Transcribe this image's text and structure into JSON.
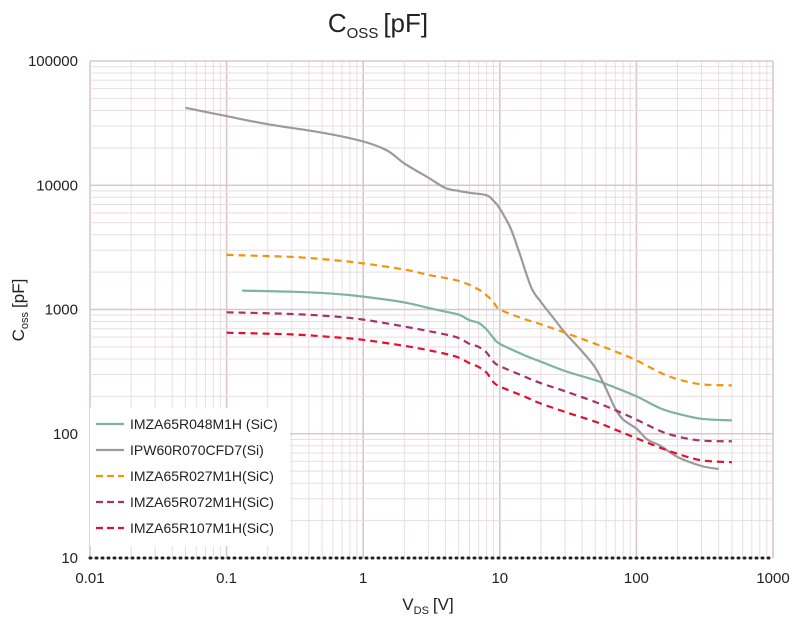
{
  "chart_data": {
    "type": "line",
    "title": "C",
    "title_sub": "OSS",
    "title_unit": "[pF]",
    "xlabel": "V",
    "xlabel_sub": "DS",
    "xlabel_unit": "[V]",
    "ylabel": "C",
    "ylabel_sub": "oss",
    "ylabel_unit": "[pF]",
    "x_scale": "log",
    "y_scale": "log",
    "xlim": [
      0.01,
      1000
    ],
    "ylim": [
      10,
      100000
    ],
    "x_ticks": [
      "0.01",
      "0.1",
      "1",
      "10",
      "100",
      "1000"
    ],
    "y_ticks": [
      "10",
      "100",
      "1000",
      "10000",
      "100000"
    ],
    "grid": true,
    "legend_position": "bottom-left",
    "series": [
      {
        "name": "IMZA65R048M1H (SiC)",
        "color": "#7fb3a0",
        "dash": "solid",
        "points": [
          [
            0.13,
            1420
          ],
          [
            0.3,
            1390
          ],
          [
            0.6,
            1340
          ],
          [
            1,
            1270
          ],
          [
            2,
            1140
          ],
          [
            3,
            1030
          ],
          [
            4,
            960
          ],
          [
            5,
            910
          ],
          [
            6,
            820
          ],
          [
            7,
            780
          ],
          [
            8,
            690
          ],
          [
            9,
            590
          ],
          [
            10,
            530
          ],
          [
            15,
            430
          ],
          [
            20,
            380
          ],
          [
            30,
            320
          ],
          [
            50,
            270
          ],
          [
            70,
            235
          ],
          [
            100,
            200
          ],
          [
            150,
            160
          ],
          [
            200,
            145
          ],
          [
            300,
            132
          ],
          [
            500,
            128
          ]
        ]
      },
      {
        "name": "IPW60R070CFD7(Si)",
        "color": "#9b9b9b",
        "dash": "solid",
        "points": [
          [
            0.05,
            42000
          ],
          [
            0.1,
            36000
          ],
          [
            0.2,
            31000
          ],
          [
            0.5,
            26500
          ],
          [
            1,
            22500
          ],
          [
            1.5,
            19000
          ],
          [
            2,
            15000
          ],
          [
            3,
            11500
          ],
          [
            4,
            9500
          ],
          [
            5,
            9000
          ],
          [
            6,
            8700
          ],
          [
            8,
            8300
          ],
          [
            9,
            7500
          ],
          [
            10,
            6500
          ],
          [
            12,
            4500
          ],
          [
            14,
            2800
          ],
          [
            17,
            1500
          ],
          [
            20,
            1150
          ],
          [
            25,
            840
          ],
          [
            30,
            650
          ],
          [
            40,
            460
          ],
          [
            50,
            340
          ],
          [
            60,
            230
          ],
          [
            70,
            160
          ],
          [
            80,
            130
          ],
          [
            100,
            110
          ],
          [
            120,
            90
          ],
          [
            150,
            80
          ],
          [
            200,
            65
          ],
          [
            300,
            55
          ],
          [
            400,
            52
          ]
        ]
      },
      {
        "name": "IMZA65R027M1H(SiC)",
        "color": "#f0960a",
        "dash": "dashed",
        "points": [
          [
            0.1,
            2750
          ],
          [
            0.3,
            2650
          ],
          [
            0.6,
            2500
          ],
          [
            1,
            2350
          ],
          [
            2,
            2100
          ],
          [
            3,
            1900
          ],
          [
            5,
            1700
          ],
          [
            7,
            1450
          ],
          [
            8,
            1300
          ],
          [
            9,
            1150
          ],
          [
            10,
            1000
          ],
          [
            15,
            840
          ],
          [
            20,
            760
          ],
          [
            30,
            650
          ],
          [
            50,
            530
          ],
          [
            70,
            460
          ],
          [
            100,
            390
          ],
          [
            150,
            310
          ],
          [
            200,
            275
          ],
          [
            300,
            250
          ],
          [
            500,
            245
          ]
        ]
      },
      {
        "name": "IMZA65R072M1H(SiC)",
        "color": "#a4336b",
        "dash": "dashed",
        "points": [
          [
            0.1,
            950
          ],
          [
            0.3,
            920
          ],
          [
            0.6,
            880
          ],
          [
            1,
            830
          ],
          [
            2,
            730
          ],
          [
            3,
            670
          ],
          [
            4,
            630
          ],
          [
            5,
            590
          ],
          [
            6,
            530
          ],
          [
            7,
            500
          ],
          [
            8,
            450
          ],
          [
            9,
            380
          ],
          [
            10,
            350
          ],
          [
            15,
            290
          ],
          [
            20,
            255
          ],
          [
            30,
            220
          ],
          [
            50,
            180
          ],
          [
            70,
            155
          ],
          [
            100,
            130
          ],
          [
            150,
            105
          ],
          [
            200,
            95
          ],
          [
            300,
            88
          ],
          [
            500,
            87
          ]
        ]
      },
      {
        "name": "IMZA65R107M1H(SiC)",
        "color": "#e0102e",
        "dash": "dashed",
        "points": [
          [
            0.1,
            650
          ],
          [
            0.3,
            630
          ],
          [
            0.6,
            600
          ],
          [
            1,
            570
          ],
          [
            2,
            510
          ],
          [
            3,
            470
          ],
          [
            4,
            440
          ],
          [
            5,
            410
          ],
          [
            6,
            370
          ],
          [
            7,
            345
          ],
          [
            8,
            310
          ],
          [
            9,
            260
          ],
          [
            10,
            240
          ],
          [
            15,
            200
          ],
          [
            20,
            175
          ],
          [
            30,
            150
          ],
          [
            50,
            125
          ],
          [
            70,
            108
          ],
          [
            100,
            92
          ],
          [
            150,
            77
          ],
          [
            200,
            69
          ],
          [
            300,
            61
          ],
          [
            500,
            59
          ]
        ]
      }
    ]
  }
}
